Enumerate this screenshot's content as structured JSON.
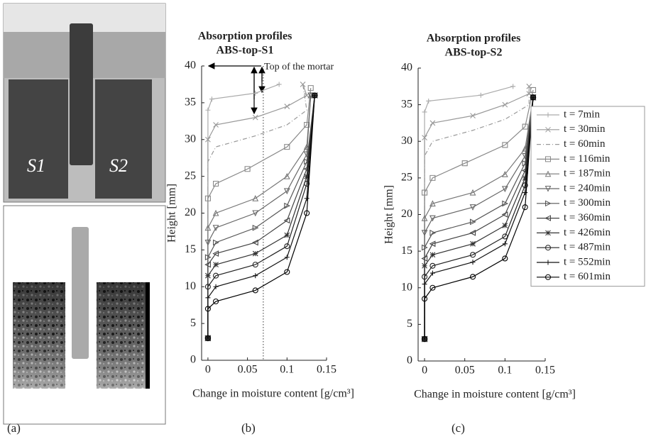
{
  "panel_labels": [
    "(a)",
    "(b)",
    "(c)"
  ],
  "image_labels": [
    "S1",
    "S2"
  ],
  "chart_data": [
    {
      "type": "line",
      "title": [
        "Absorption profiles",
        "ABS-top-S1"
      ],
      "x_label": "Change in moisture content [g/cm³]",
      "y_label": "Height [mm]",
      "annotation": "Top of the mortar",
      "vline_x": 0.07,
      "xlim": [
        -0.008,
        0.15
      ],
      "xticks": [
        0,
        0.05,
        0.1,
        0.15
      ],
      "ylim": [
        0,
        40
      ],
      "yticks": [
        0,
        5,
        10,
        15,
        20,
        25,
        30,
        35,
        40
      ],
      "legend": false,
      "series": [
        {
          "name": "t = 7min",
          "color": "#aaaaaa",
          "marker": "+",
          "x": [
            0,
            0,
            0.005,
            0.06,
            0.09
          ],
          "y": [
            3,
            34,
            35.5,
            36.3,
            37.5
          ]
        },
        {
          "name": "t = 30min",
          "color": "#999999",
          "marker": "x",
          "x": [
            0,
            0,
            0.01,
            0.06,
            0.1,
            0.125,
            0.12
          ],
          "y": [
            3,
            30,
            32,
            33,
            34.5,
            36,
            37.5
          ]
        },
        {
          "name": "t = 60min",
          "color": "#999999",
          "marker": "none",
          "dash": true,
          "x": [
            0,
            0,
            0.01,
            0.06,
            0.1,
            0.125,
            0.12
          ],
          "y": [
            3,
            27,
            29,
            30.5,
            32,
            34,
            37.5
          ]
        },
        {
          "name": "t = 116min",
          "color": "#888888",
          "marker": "s",
          "x": [
            0,
            0,
            0.01,
            0.05,
            0.1,
            0.125,
            0.13
          ],
          "y": [
            3,
            22,
            24,
            26,
            29,
            32,
            37
          ]
        },
        {
          "name": "t = 187min",
          "color": "#777777",
          "marker": "^",
          "x": [
            0,
            0,
            0.01,
            0.06,
            0.1,
            0.125,
            0.13
          ],
          "y": [
            3,
            18,
            20,
            22,
            25,
            29,
            36
          ]
        },
        {
          "name": "t = 240min",
          "color": "#666666",
          "marker": "v",
          "x": [
            0,
            0,
            0.01,
            0.06,
            0.1,
            0.125,
            0.13
          ],
          "y": [
            3,
            16,
            18,
            20,
            23,
            28,
            36
          ]
        },
        {
          "name": "t = 300min",
          "color": "#555555",
          "marker": ">",
          "x": [
            0,
            0,
            0.01,
            0.06,
            0.1,
            0.125,
            0.135
          ],
          "y": [
            3,
            14,
            16,
            18,
            21,
            27,
            36
          ]
        },
        {
          "name": "t = 360min",
          "color": "#444444",
          "marker": "<",
          "x": [
            0,
            0,
            0.01,
            0.06,
            0.1,
            0.125,
            0.135
          ],
          "y": [
            3,
            13,
            14.5,
            16,
            19,
            26,
            36
          ]
        },
        {
          "name": "t = 426min",
          "color": "#333333",
          "marker": "*",
          "x": [
            0,
            0,
            0.01,
            0.06,
            0.1,
            0.125,
            0.135
          ],
          "y": [
            3,
            11.5,
            13,
            14.5,
            17,
            25,
            36
          ]
        },
        {
          "name": "t = 487min",
          "color": "#222222",
          "marker": "o",
          "x": [
            0,
            0,
            0.01,
            0.06,
            0.1,
            0.125,
            0.135
          ],
          "y": [
            3,
            10,
            11.5,
            13,
            15.5,
            24,
            36
          ]
        },
        {
          "name": "t = 552min",
          "color": "#111111",
          "marker": "+",
          "x": [
            0,
            0,
            0.01,
            0.06,
            0.1,
            0.125,
            0.135
          ],
          "y": [
            3,
            8.5,
            10,
            11.5,
            14,
            22,
            36
          ]
        },
        {
          "name": "t = 601min",
          "color": "#000000",
          "marker": "o",
          "x": [
            0,
            0,
            0.01,
            0.06,
            0.1,
            0.125,
            0.135
          ],
          "y": [
            3,
            7,
            8,
            9.5,
            12,
            20,
            36
          ]
        }
      ]
    },
    {
      "type": "line",
      "title": [
        "Absorption profiles",
        "ABS-top-S2"
      ],
      "x_label": "Change in moisture content [g/cm³]",
      "y_label": "Height [mm]",
      "xlim": [
        -0.008,
        0.15
      ],
      "xticks": [
        0,
        0.05,
        0.1,
        0.15
      ],
      "ylim": [
        0,
        40
      ],
      "yticks": [
        0,
        5,
        10,
        15,
        20,
        25,
        30,
        35,
        40
      ],
      "legend": true,
      "series": [
        {
          "name": "t = 7min",
          "color": "#aaaaaa",
          "marker": "+",
          "x": [
            0,
            0,
            0.005,
            0.07,
            0.11
          ],
          "y": [
            3,
            34,
            35.5,
            36.3,
            37.5
          ]
        },
        {
          "name": "t = 30min",
          "color": "#999999",
          "marker": "x",
          "x": [
            0,
            0,
            0.01,
            0.06,
            0.1,
            0.13,
            0.13
          ],
          "y": [
            3,
            30.5,
            32.5,
            33.5,
            35,
            36.5,
            37.5
          ]
        },
        {
          "name": "t = 60min",
          "color": "#999999",
          "marker": "none",
          "dash": true,
          "x": [
            0,
            0,
            0.01,
            0.06,
            0.1,
            0.13,
            0.13
          ],
          "y": [
            3,
            28,
            30,
            31.5,
            33,
            35,
            37.5
          ]
        },
        {
          "name": "t = 116min",
          "color": "#888888",
          "marker": "s",
          "x": [
            0,
            0,
            0.01,
            0.05,
            0.1,
            0.125,
            0.135
          ],
          "y": [
            3,
            23,
            25,
            27,
            29.5,
            32,
            37
          ]
        },
        {
          "name": "t = 187min",
          "color": "#777777",
          "marker": "^",
          "x": [
            0,
            0,
            0.01,
            0.06,
            0.1,
            0.125,
            0.135
          ],
          "y": [
            3,
            19.5,
            21.5,
            23,
            25.5,
            29,
            36
          ]
        },
        {
          "name": "t = 240min",
          "color": "#666666",
          "marker": "v",
          "x": [
            0,
            0,
            0.01,
            0.06,
            0.1,
            0.125,
            0.135
          ],
          "y": [
            3,
            17.5,
            19.5,
            21,
            23.5,
            28,
            36
          ]
        },
        {
          "name": "t = 300min",
          "color": "#555555",
          "marker": ">",
          "x": [
            0,
            0,
            0.01,
            0.06,
            0.1,
            0.125,
            0.135
          ],
          "y": [
            3,
            15.5,
            17.5,
            19,
            21.5,
            27,
            36
          ]
        },
        {
          "name": "t = 360min",
          "color": "#444444",
          "marker": "<",
          "x": [
            0,
            0,
            0.01,
            0.06,
            0.1,
            0.125,
            0.135
          ],
          "y": [
            3,
            14,
            16,
            17.5,
            20,
            26,
            36
          ]
        },
        {
          "name": "t = 426min",
          "color": "#333333",
          "marker": "*",
          "x": [
            0,
            0,
            0.01,
            0.06,
            0.1,
            0.125,
            0.135
          ],
          "y": [
            3,
            13,
            14.5,
            16,
            18.5,
            25,
            36
          ]
        },
        {
          "name": "t = 487min",
          "color": "#222222",
          "marker": "o",
          "x": [
            0,
            0,
            0.01,
            0.06,
            0.1,
            0.125,
            0.135
          ],
          "y": [
            3,
            11.5,
            13,
            14.5,
            17,
            24,
            36
          ]
        },
        {
          "name": "t = 552min",
          "color": "#111111",
          "marker": "+",
          "x": [
            0,
            0,
            0.01,
            0.06,
            0.1,
            0.125,
            0.135
          ],
          "y": [
            3,
            10.5,
            12,
            13.5,
            16,
            23,
            36
          ]
        },
        {
          "name": "t = 601min",
          "color": "#000000",
          "marker": "o",
          "x": [
            0,
            0,
            0.01,
            0.06,
            0.1,
            0.125,
            0.135
          ],
          "y": [
            3,
            8.5,
            10,
            11.5,
            14,
            21,
            36
          ]
        }
      ]
    }
  ]
}
